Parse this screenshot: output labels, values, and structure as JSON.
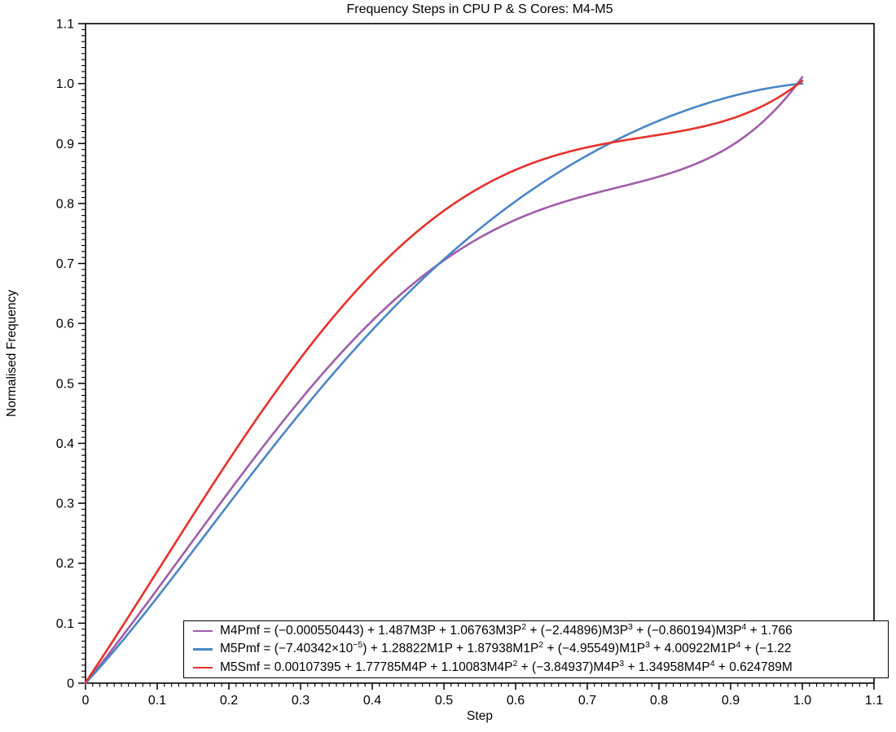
{
  "title": "Frequency Steps in CPU P & S Cores: M4-M5",
  "axes": {
    "x": {
      "label": "Step",
      "tick_labels": [
        "0",
        "0.1",
        "0.2",
        "0.3",
        "0.4",
        "0.5",
        "0.6",
        "0.7",
        "0.8",
        "0.9",
        "1.0",
        "1.1"
      ],
      "range": [
        0,
        1.1
      ],
      "major_step": 0.1,
      "minor_step": 0.01
    },
    "y": {
      "label": "Normalised Frequency",
      "tick_labels": [
        "0",
        "0.1",
        "0.2",
        "0.3",
        "0.4",
        "0.5",
        "0.6",
        "0.7",
        "0.8",
        "0.9",
        "1.0",
        "1.1"
      ],
      "range": [
        0,
        1.1
      ],
      "major_step": 0.1,
      "minor_step": 0.01
    }
  },
  "colors": {
    "axis": "#000000",
    "background": "#ffffff",
    "purple_series": "#a05da8",
    "blue_series": "#4a86c6",
    "red_series": "#e6312b"
  },
  "legend": {
    "entries": [
      {
        "name": "M4Pmf",
        "color": "#a05da8",
        "segments": [
          {
            "t": "M4Pmf = (−0.000550443) + 1.487M3P + 1.06763M3P"
          },
          {
            "t": "2",
            "sup": true
          },
          {
            "t": " + (−2.44896)M3P"
          },
          {
            "t": "3",
            "sup": true
          },
          {
            "t": " + (−0.860194)M3P"
          },
          {
            "t": "4",
            "sup": true
          },
          {
            "t": " + 1.766"
          }
        ]
      },
      {
        "name": "M5Pmf",
        "color": "#4a86c6",
        "segments": [
          {
            "t": "M5Pmf = (−7.40342×10"
          },
          {
            "t": "−5",
            "sup": true
          },
          {
            "t": ") + 1.28822M1P + 1.87938M1P"
          },
          {
            "t": "2",
            "sup": true
          },
          {
            "t": " + (−4.95549)M1P"
          },
          {
            "t": "3",
            "sup": true
          },
          {
            "t": " + 4.00922M1P"
          },
          {
            "t": "4",
            "sup": true
          },
          {
            "t": " + (−1.22"
          }
        ]
      },
      {
        "name": "M5Smf",
        "color": "#e6312b",
        "segments": [
          {
            "t": "M5Smf = 0.00107395 + 1.77785M4P + 1.10083M4P"
          },
          {
            "t": "2",
            "sup": true
          },
          {
            "t": " + (−3.84937)M4P"
          },
          {
            "t": "3",
            "sup": true
          },
          {
            "t": " + 1.34958M4P"
          },
          {
            "t": "4",
            "sup": true
          },
          {
            "t": " + 0.624789M"
          }
        ]
      }
    ]
  },
  "chart_data": {
    "type": "line",
    "title": "Frequency Steps in CPU P & S Cores: M4-M5",
    "xlabel": "Step",
    "ylabel": "Normalised Frequency",
    "xlim": [
      0,
      1.1
    ],
    "ylim": [
      0,
      1.1
    ],
    "grid": false,
    "legend_position": "bottom-inside",
    "x_samples": [
      0,
      0.1,
      0.2,
      0.3,
      0.4,
      0.5,
      0.6,
      0.7,
      0.8,
      0.9,
      1.0
    ],
    "series": [
      {
        "name": "M4Pmf",
        "color": "#a05da8",
        "poly_coefficients": [
          -0.000550443,
          1.487,
          1.06763,
          -2.44896,
          -0.860194,
          1.766
        ],
        "values": [
          -0.001,
          0.156,
          0.319,
          0.473,
          0.604,
          0.705,
          0.773,
          0.814,
          0.845,
          0.896,
          1.011
        ]
      },
      {
        "name": "M5Pmf",
        "color": "#4a86c6",
        "poly_coefficients": [
          -7.40342e-05,
          1.28822,
          1.87938,
          -4.95549,
          4.00922,
          -1.2213
        ],
        "values": [
          0.0,
          0.143,
          0.299,
          0.451,
          0.589,
          0.707,
          0.804,
          0.88,
          0.938,
          0.978,
          1.0
        ]
      },
      {
        "name": "M5Smf",
        "color": "#e6312b",
        "poly_coefficients": [
          0.00107395,
          1.77785,
          1.10083,
          -3.84937,
          1.34958,
          0.624789
        ],
        "values": [
          0.001,
          0.186,
          0.372,
          0.542,
          0.683,
          0.788,
          0.856,
          0.894,
          0.915,
          0.941,
          1.005
        ]
      }
    ]
  }
}
